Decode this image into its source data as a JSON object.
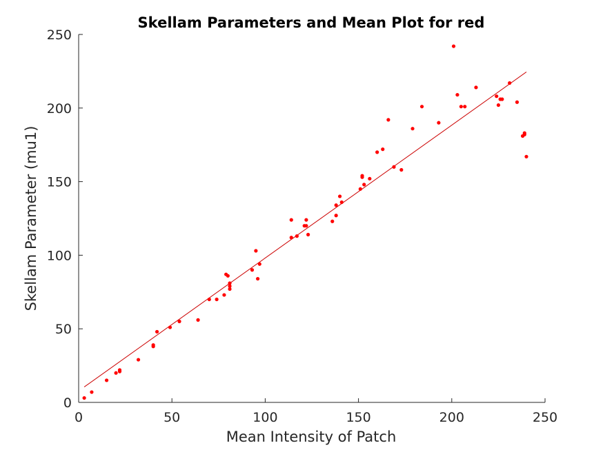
{
  "chart_data": {
    "type": "scatter",
    "title": "Skellam Parameters and Mean Plot for red",
    "xlabel": "Mean Intensity of Patch",
    "ylabel": "Skellam Parameter (mu1)",
    "xlim": [
      0,
      250
    ],
    "ylim": [
      0,
      250
    ],
    "xticks": [
      "0",
      "50",
      "100",
      "150",
      "200",
      "250"
    ],
    "yticks": [
      "0",
      "50",
      "100",
      "150",
      "200",
      "250"
    ],
    "grid": false,
    "box": false,
    "marker_color": "#ff0000",
    "line_color": "#cc0000",
    "points": [
      [
        3,
        3
      ],
      [
        7,
        7
      ],
      [
        15,
        15
      ],
      [
        20,
        20
      ],
      [
        22,
        21
      ],
      [
        22,
        22
      ],
      [
        32,
        29
      ],
      [
        40,
        38
      ],
      [
        40,
        39
      ],
      [
        42,
        48
      ],
      [
        49,
        51
      ],
      [
        54,
        55
      ],
      [
        64,
        56
      ],
      [
        70,
        70
      ],
      [
        74,
        70
      ],
      [
        78,
        73
      ],
      [
        79,
        87
      ],
      [
        80,
        86
      ],
      [
        81,
        77
      ],
      [
        81,
        79
      ],
      [
        81,
        81
      ],
      [
        93,
        90
      ],
      [
        95,
        103
      ],
      [
        96,
        84
      ],
      [
        97,
        94
      ],
      [
        114,
        112
      ],
      [
        114,
        124
      ],
      [
        117,
        113
      ],
      [
        121,
        120
      ],
      [
        122,
        120
      ],
      [
        122,
        124
      ],
      [
        123,
        114
      ],
      [
        136,
        123
      ],
      [
        138,
        127
      ],
      [
        138,
        134
      ],
      [
        140,
        140
      ],
      [
        141,
        136
      ],
      [
        151,
        145
      ],
      [
        152,
        153
      ],
      [
        152,
        154
      ],
      [
        153,
        148
      ],
      [
        156,
        152
      ],
      [
        160,
        170
      ],
      [
        163,
        172
      ],
      [
        166,
        192
      ],
      [
        169,
        160
      ],
      [
        173,
        158
      ],
      [
        179,
        186
      ],
      [
        184,
        201
      ],
      [
        193,
        190
      ],
      [
        201,
        242
      ],
      [
        203,
        209
      ],
      [
        205,
        201
      ],
      [
        207,
        201
      ],
      [
        213,
        214
      ],
      [
        224,
        208
      ],
      [
        225,
        202
      ],
      [
        226,
        206
      ],
      [
        227,
        206
      ],
      [
        231,
        217
      ],
      [
        235,
        204
      ],
      [
        238,
        181
      ],
      [
        239,
        182
      ],
      [
        239,
        183
      ],
      [
        240,
        167
      ]
    ],
    "fit_line": {
      "x": [
        3,
        240
      ],
      "y": [
        10.5,
        224.5
      ]
    }
  }
}
